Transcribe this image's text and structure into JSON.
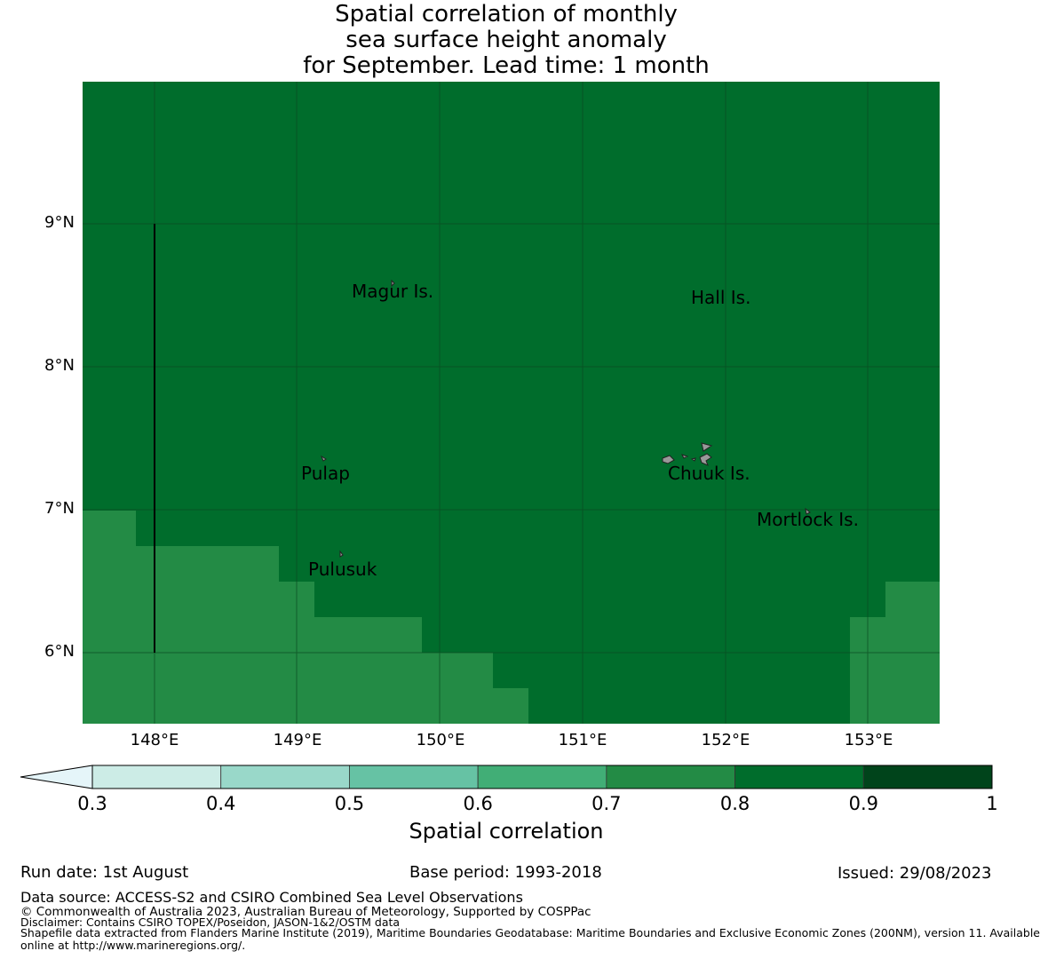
{
  "title": {
    "line1": "Spatial correlation of monthly",
    "line2": "sea surface height anomaly",
    "line3": "for September. Lead time: 1 month"
  },
  "map": {
    "y_labels": [
      "9°N",
      "8°N",
      "7°N",
      "6°N"
    ],
    "x_labels": [
      "148°E",
      "149°E",
      "150°E",
      "151°E",
      "152°E",
      "153°E"
    ],
    "places": [
      {
        "name": "Magur Is."
      },
      {
        "name": "Hall Is."
      },
      {
        "name": "Pulap"
      },
      {
        "name": "Chuuk Is."
      },
      {
        "name": "Mortlock Is."
      },
      {
        "name": "Pulusuk"
      }
    ],
    "colors": {
      "range_0_8_0_9": "#006d2c",
      "range_0_7_0_8": "#238b45",
      "gridline": "#0a4a20",
      "island_fill": "#999999"
    }
  },
  "colorbar": {
    "ticks": [
      "0.3",
      "0.4",
      "0.5",
      "0.6",
      "0.7",
      "0.8",
      "0.9",
      "1"
    ],
    "colors": [
      "#ccece6",
      "#99d8c9",
      "#66c2a4",
      "#41ae76",
      "#238b45",
      "#006d2c",
      "#00441b"
    ],
    "extend_color": "#e5f5f9",
    "label": "Spatial correlation"
  },
  "footer": {
    "run_date": "Run date: 1st August",
    "base_period": "Base period: 1993-2018",
    "issued": "Issued: 29/08/2023",
    "data_source": "Data source: ACCESS-S2 and CSIRO Combined Sea Level Observations",
    "copyright": "© Commonwealth of Australia 2023, Australian Bureau of Meteorology, Supported by COSPPac",
    "disclaimer": "Disclaimer: Contains CSIRO TOPEX/Poseidon, JASON-1&2/OSTM data",
    "shapefile_line1": "Shapefile data extracted from Flanders Marine Institute (2019), Maritime Boundaries Geodatabase: Maritime Boundaries and Exclusive Economic Zones (200NM), version 11. Available",
    "shapefile_line2": "online at http://www.marineregions.org/."
  }
}
